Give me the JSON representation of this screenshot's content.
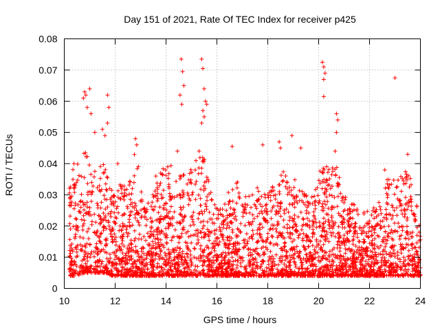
{
  "chart_data": {
    "type": "scatter",
    "title": "Day 151 of 2021, Rate Of TEC Index for receiver p425",
    "xlabel": "GPS time / hours",
    "ylabel": "ROTI / TECUs",
    "xlim": [
      10,
      24
    ],
    "ylim": [
      0,
      0.08
    ],
    "x_ticks": [
      "10",
      "12",
      "14",
      "16",
      "18",
      "20",
      "22",
      "24"
    ],
    "y_ticks": [
      "0",
      "0.01",
      "0.02",
      "0.03",
      "0.04",
      "0.05",
      "0.06",
      "0.07",
      "0.08"
    ],
    "grid": true,
    "marker": "plus",
    "series": [
      {
        "name": "ROTI",
        "color": "#ff0000",
        "envelope": {
          "x": [
            10.2,
            10.5,
            10.8,
            11.0,
            11.3,
            11.6,
            11.9,
            12.2,
            12.5,
            12.8,
            13.1,
            13.4,
            13.8,
            14.1,
            14.4,
            14.7,
            15.0,
            15.3,
            15.6,
            15.9,
            16.2,
            16.5,
            16.8,
            17.1,
            17.4,
            17.7,
            18.0,
            18.3,
            18.6,
            18.9,
            19.2,
            19.5,
            19.8,
            20.1,
            20.4,
            20.7,
            21.0,
            21.3,
            21.6,
            21.9,
            22.2,
            22.5,
            22.8,
            23.1,
            23.4,
            23.7,
            24.0
          ],
          "upper": [
            0.035,
            0.045,
            0.045,
            0.04,
            0.038,
            0.045,
            0.03,
            0.034,
            0.032,
            0.045,
            0.03,
            0.028,
            0.038,
            0.04,
            0.04,
            0.04,
            0.038,
            0.045,
            0.04,
            0.028,
            0.025,
            0.032,
            0.035,
            0.03,
            0.033,
            0.035,
            0.032,
            0.035,
            0.04,
            0.035,
            0.035,
            0.03,
            0.03,
            0.04,
            0.04,
            0.04,
            0.03,
            0.028,
            0.025,
            0.025,
            0.027,
            0.035,
            0.035,
            0.035,
            0.038,
            0.037,
            0.02
          ],
          "lower": [
            0.004,
            0.004,
            0.005,
            0.005,
            0.005,
            0.005,
            0.004,
            0.004,
            0.004,
            0.004,
            0.004,
            0.004,
            0.004,
            0.004,
            0.004,
            0.004,
            0.004,
            0.004,
            0.004,
            0.004,
            0.004,
            0.004,
            0.004,
            0.004,
            0.004,
            0.004,
            0.004,
            0.004,
            0.004,
            0.004,
            0.004,
            0.004,
            0.004,
            0.004,
            0.004,
            0.004,
            0.004,
            0.004,
            0.004,
            0.004,
            0.004,
            0.004,
            0.004,
            0.004,
            0.004,
            0.004,
            0.004
          ]
        },
        "outliers": [
          [
            10.75,
            0.061
          ],
          [
            10.8,
            0.063
          ],
          [
            10.85,
            0.062
          ],
          [
            10.9,
            0.058
          ],
          [
            11.0,
            0.064
          ],
          [
            11.05,
            0.056
          ],
          [
            11.5,
            0.051
          ],
          [
            11.6,
            0.049
          ],
          [
            11.7,
            0.062
          ],
          [
            11.75,
            0.058
          ],
          [
            11.7,
            0.053
          ],
          [
            11.2,
            0.05
          ],
          [
            12.8,
            0.048
          ],
          [
            12.85,
            0.046
          ],
          [
            14.6,
            0.0735
          ],
          [
            14.65,
            0.0695
          ],
          [
            14.7,
            0.065
          ],
          [
            14.55,
            0.062
          ],
          [
            14.62,
            0.059
          ],
          [
            14.45,
            0.044
          ],
          [
            15.4,
            0.0735
          ],
          [
            15.45,
            0.0705
          ],
          [
            15.5,
            0.064
          ],
          [
            15.55,
            0.06
          ],
          [
            15.6,
            0.059
          ],
          [
            15.4,
            0.053
          ],
          [
            15.5,
            0.055
          ],
          [
            15.45,
            0.057
          ],
          [
            15.3,
            0.044
          ],
          [
            16.6,
            0.0455
          ],
          [
            17.8,
            0.046
          ],
          [
            18.45,
            0.047
          ],
          [
            18.5,
            0.045
          ],
          [
            18.95,
            0.049
          ],
          [
            19.3,
            0.045
          ],
          [
            20.15,
            0.0725
          ],
          [
            20.2,
            0.071
          ],
          [
            20.25,
            0.069
          ],
          [
            20.2,
            0.067
          ],
          [
            20.2,
            0.0615
          ],
          [
            20.7,
            0.056
          ],
          [
            20.75,
            0.054
          ],
          [
            20.7,
            0.05
          ],
          [
            20.65,
            0.044
          ],
          [
            23.0,
            0.0675
          ],
          [
            23.5,
            0.043
          ],
          [
            22.6,
            0.038
          ],
          [
            12.1,
            0.04
          ],
          [
            13.6,
            0.036
          ]
        ]
      }
    ]
  }
}
